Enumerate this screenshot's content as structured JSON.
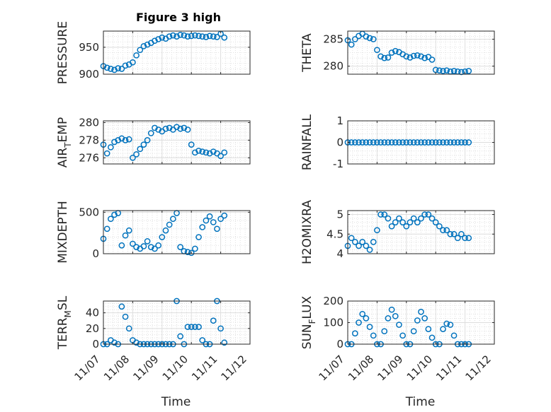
{
  "figure": {
    "title": "Figure 3 high"
  },
  "chart_data": [
    {
      "type": "scatter",
      "id": "pressure",
      "title": "Figure 3 high",
      "xlabel": "",
      "ylabel": "PRESSURE",
      "xlim": [
        "11/07",
        "11/12"
      ],
      "xticks": [
        "11/07",
        "11/08",
        "11/09",
        "11/10",
        "11/11",
        "11/12"
      ],
      "show_xtick_labels": false,
      "ylim": [
        900,
        980
      ],
      "yticks": [
        900,
        950
      ],
      "grid": true,
      "color": "#0072BD",
      "x": [
        "11/07 00:00",
        "11/07 03:00",
        "11/07 06:00",
        "11/07 09:00",
        "11/07 12:00",
        "11/07 15:00",
        "11/07 18:00",
        "11/07 21:00",
        "11/08 00:00",
        "11/08 03:00",
        "11/08 06:00",
        "11/08 09:00",
        "11/08 12:00",
        "11/08 15:00",
        "11/08 18:00",
        "11/08 21:00",
        "11/09 00:00",
        "11/09 03:00",
        "11/09 06:00",
        "11/09 09:00",
        "11/09 12:00",
        "11/09 15:00",
        "11/09 18:00",
        "11/09 21:00",
        "11/10 00:00",
        "11/10 03:00",
        "11/10 06:00",
        "11/10 09:00",
        "11/10 12:00",
        "11/10 15:00",
        "11/10 18:00",
        "11/10 21:00",
        "11/11 00:00",
        "11/11 03:00"
      ],
      "y": [
        915,
        912,
        910,
        908,
        911,
        910,
        916,
        918,
        922,
        935,
        945,
        952,
        955,
        958,
        962,
        965,
        968,
        966,
        970,
        972,
        970,
        973,
        972,
        970,
        971,
        972,
        971,
        970,
        969,
        971,
        970,
        969,
        975,
        968
      ]
    },
    {
      "type": "scatter",
      "id": "theta",
      "xlabel": "",
      "ylabel": "THETA",
      "xlim": [
        "11/07",
        "11/12"
      ],
      "xticks": [
        "11/07",
        "11/08",
        "11/09",
        "11/10",
        "11/11",
        "11/12"
      ],
      "show_xtick_labels": false,
      "ylim": [
        278.5,
        286.5
      ],
      "yticks": [
        280,
        285
      ],
      "grid": true,
      "color": "#0072BD",
      "x": [
        "11/07 00:00",
        "11/07 03:00",
        "11/07 06:00",
        "11/07 09:00",
        "11/07 12:00",
        "11/07 15:00",
        "11/07 18:00",
        "11/07 21:00",
        "11/08 00:00",
        "11/08 03:00",
        "11/08 06:00",
        "11/08 09:00",
        "11/08 12:00",
        "11/08 15:00",
        "11/08 18:00",
        "11/08 21:00",
        "11/09 00:00",
        "11/09 03:00",
        "11/09 06:00",
        "11/09 09:00",
        "11/09 12:00",
        "11/09 15:00",
        "11/09 18:00",
        "11/09 21:00",
        "11/10 00:00",
        "11/10 03:00",
        "11/10 06:00",
        "11/10 09:00",
        "11/10 12:00",
        "11/10 15:00",
        "11/10 18:00",
        "11/10 21:00",
        "11/11 00:00",
        "11/11 03:00"
      ],
      "y": [
        284.8,
        284.0,
        285.0,
        285.6,
        286.0,
        285.5,
        285.2,
        285.0,
        283.0,
        281.8,
        281.5,
        281.6,
        282.5,
        282.8,
        282.6,
        282.2,
        281.8,
        281.6,
        281.9,
        282.0,
        281.8,
        281.5,
        281.7,
        281.2,
        279.3,
        279.2,
        279.1,
        279.2,
        279.0,
        279.1,
        279.0,
        278.9,
        279.0,
        279.1
      ]
    },
    {
      "type": "scatter",
      "id": "air_temp",
      "xlabel": "",
      "ylabel": "AIR_TEMP",
      "ylabel_main": "AIR",
      "ylabel_sub": "T",
      "ylabel_rest": "EMP",
      "xlim": [
        "11/07",
        "11/12"
      ],
      "xticks": [
        "11/07",
        "11/08",
        "11/09",
        "11/10",
        "11/11",
        "11/12"
      ],
      "show_xtick_labels": false,
      "ylim": [
        275.3,
        280.2
      ],
      "yticks": [
        276,
        278,
        280
      ],
      "grid": true,
      "color": "#0072BD",
      "x": [
        "11/07 00:00",
        "11/07 03:00",
        "11/07 06:00",
        "11/07 09:00",
        "11/07 12:00",
        "11/07 15:00",
        "11/07 18:00",
        "11/07 21:00",
        "11/08 00:00",
        "11/08 03:00",
        "11/08 06:00",
        "11/08 09:00",
        "11/08 12:00",
        "11/08 15:00",
        "11/08 18:00",
        "11/08 21:00",
        "11/09 00:00",
        "11/09 03:00",
        "11/09 06:00",
        "11/09 09:00",
        "11/09 12:00",
        "11/09 15:00",
        "11/09 18:00",
        "11/09 21:00",
        "11/10 00:00",
        "11/10 03:00",
        "11/10 06:00",
        "11/10 09:00",
        "11/10 12:00",
        "11/10 15:00",
        "11/10 18:00",
        "11/10 21:00",
        "11/11 00:00",
        "11/11 03:00"
      ],
      "y": [
        277.5,
        276.5,
        277.2,
        277.8,
        278.0,
        278.2,
        278.0,
        278.1,
        276.0,
        276.4,
        277.0,
        277.5,
        278.0,
        278.8,
        279.4,
        279.2,
        279.0,
        279.3,
        279.4,
        279.2,
        279.5,
        279.3,
        279.4,
        279.2,
        277.5,
        276.6,
        276.8,
        276.7,
        276.6,
        276.5,
        276.7,
        276.5,
        276.2,
        276.6
      ]
    },
    {
      "type": "scatter",
      "id": "rainfall",
      "xlabel": "",
      "ylabel": "RAINFALL",
      "xlim": [
        "11/07",
        "11/12"
      ],
      "xticks": [
        "11/07",
        "11/08",
        "11/09",
        "11/10",
        "11/11",
        "11/12"
      ],
      "show_xtick_labels": false,
      "ylim": [
        -1,
        1
      ],
      "yticks": [
        -1,
        0,
        1
      ],
      "grid": true,
      "color": "#0072BD",
      "x": [
        "11/07 00:00",
        "11/07 03:00",
        "11/07 06:00",
        "11/07 09:00",
        "11/07 12:00",
        "11/07 15:00",
        "11/07 18:00",
        "11/07 21:00",
        "11/08 00:00",
        "11/08 03:00",
        "11/08 06:00",
        "11/08 09:00",
        "11/08 12:00",
        "11/08 15:00",
        "11/08 18:00",
        "11/08 21:00",
        "11/09 00:00",
        "11/09 03:00",
        "11/09 06:00",
        "11/09 09:00",
        "11/09 12:00",
        "11/09 15:00",
        "11/09 18:00",
        "11/09 21:00",
        "11/10 00:00",
        "11/10 03:00",
        "11/10 06:00",
        "11/10 09:00",
        "11/10 12:00",
        "11/10 15:00",
        "11/10 18:00",
        "11/10 21:00",
        "11/11 00:00",
        "11/11 03:00"
      ],
      "y": [
        0,
        0,
        0,
        0,
        0,
        0,
        0,
        0,
        0,
        0,
        0,
        0,
        0,
        0,
        0,
        0,
        0,
        0,
        0,
        0,
        0,
        0,
        0,
        0,
        0,
        0,
        0,
        0,
        0,
        0,
        0,
        0,
        0,
        0
      ]
    },
    {
      "type": "scatter",
      "id": "mixdepth",
      "xlabel": "",
      "ylabel": "MIXDEPTH",
      "xlim": [
        "11/07",
        "11/12"
      ],
      "xticks": [
        "11/07",
        "11/08",
        "11/09",
        "11/10",
        "11/11",
        "11/12"
      ],
      "show_xtick_labels": false,
      "ylim": [
        0,
        520
      ],
      "yticks": [
        0,
        500
      ],
      "grid": true,
      "color": "#0072BD",
      "x": [
        "11/07 00:00",
        "11/07 03:00",
        "11/07 06:00",
        "11/07 09:00",
        "11/07 12:00",
        "11/07 15:00",
        "11/07 18:00",
        "11/07 21:00",
        "11/08 00:00",
        "11/08 03:00",
        "11/08 06:00",
        "11/08 09:00",
        "11/08 12:00",
        "11/08 15:00",
        "11/08 18:00",
        "11/08 21:00",
        "11/09 00:00",
        "11/09 03:00",
        "11/09 06:00",
        "11/09 09:00",
        "11/09 12:00",
        "11/09 15:00",
        "11/09 18:00",
        "11/09 21:00",
        "11/10 00:00",
        "11/10 03:00",
        "11/10 06:00",
        "11/10 09:00",
        "11/10 12:00",
        "11/10 15:00",
        "11/10 18:00",
        "11/10 21:00",
        "11/11 00:00",
        "11/11 03:00"
      ],
      "y": [
        180,
        300,
        420,
        470,
        490,
        100,
        220,
        280,
        120,
        80,
        60,
        90,
        150,
        80,
        60,
        100,
        200,
        280,
        350,
        420,
        490,
        80,
        30,
        20,
        10,
        60,
        200,
        320,
        400,
        450,
        380,
        300,
        420,
        460
      ]
    },
    {
      "type": "scatter",
      "id": "h2omixra",
      "xlabel": "",
      "ylabel": "H2OMIXRA",
      "xlim": [
        "11/07",
        "11/12"
      ],
      "xticks": [
        "11/07",
        "11/08",
        "11/09",
        "11/10",
        "11/11",
        "11/12"
      ],
      "show_xtick_labels": false,
      "ylim": [
        4,
        5.1
      ],
      "yticks": [
        4,
        4.5,
        5
      ],
      "grid": true,
      "color": "#0072BD",
      "x": [
        "11/07 00:00",
        "11/07 03:00",
        "11/07 06:00",
        "11/07 09:00",
        "11/07 12:00",
        "11/07 15:00",
        "11/07 18:00",
        "11/07 21:00",
        "11/08 00:00",
        "11/08 03:00",
        "11/08 06:00",
        "11/08 09:00",
        "11/08 12:00",
        "11/08 15:00",
        "11/08 18:00",
        "11/08 21:00",
        "11/09 00:00",
        "11/09 03:00",
        "11/09 06:00",
        "11/09 09:00",
        "11/09 12:00",
        "11/09 15:00",
        "11/09 18:00",
        "11/09 21:00",
        "11/10 00:00",
        "11/10 03:00",
        "11/10 06:00",
        "11/10 09:00",
        "11/10 12:00",
        "11/10 15:00",
        "11/10 18:00",
        "11/10 21:00",
        "11/11 00:00",
        "11/11 03:00"
      ],
      "y": [
        4.2,
        4.4,
        4.3,
        4.2,
        4.3,
        4.2,
        4.1,
        4.3,
        4.6,
        5.0,
        5.0,
        4.9,
        4.7,
        4.8,
        4.9,
        4.8,
        4.7,
        4.8,
        4.9,
        4.8,
        4.9,
        5.0,
        5.0,
        4.9,
        4.8,
        4.7,
        4.6,
        4.6,
        4.5,
        4.5,
        4.4,
        4.5,
        4.4,
        4.4
      ]
    },
    {
      "type": "scatter",
      "id": "terr_msl",
      "xlabel": "Time",
      "ylabel": "TERR_MSL",
      "ylabel_main": "TERR",
      "ylabel_sub": "M",
      "ylabel_rest": "SL",
      "xlim": [
        "11/07",
        "11/12"
      ],
      "xticks": [
        "11/07",
        "11/08",
        "11/09",
        "11/10",
        "11/11",
        "11/12"
      ],
      "show_xtick_labels": true,
      "ylim": [
        0,
        55
      ],
      "yticks": [
        0,
        20,
        40
      ],
      "grid": true,
      "color": "#0072BD",
      "x": [
        "11/07 00:00",
        "11/07 03:00",
        "11/07 06:00",
        "11/07 09:00",
        "11/07 12:00",
        "11/07 15:00",
        "11/07 18:00",
        "11/07 21:00",
        "11/08 00:00",
        "11/08 03:00",
        "11/08 06:00",
        "11/08 09:00",
        "11/08 12:00",
        "11/08 15:00",
        "11/08 18:00",
        "11/08 21:00",
        "11/09 00:00",
        "11/09 03:00",
        "11/09 06:00",
        "11/09 09:00",
        "11/09 12:00",
        "11/09 15:00",
        "11/09 18:00",
        "11/09 21:00",
        "11/10 00:00",
        "11/10 03:00",
        "11/10 06:00",
        "11/10 09:00",
        "11/10 12:00",
        "11/10 15:00",
        "11/10 18:00",
        "11/10 21:00",
        "11/11 00:00",
        "11/11 03:00"
      ],
      "y": [
        0,
        0,
        5,
        2,
        0,
        48,
        35,
        20,
        5,
        2,
        0,
        0,
        0,
        0,
        0,
        0,
        0,
        0,
        0,
        0,
        55,
        10,
        0,
        22,
        22,
        22,
        22,
        5,
        0,
        0,
        30,
        55,
        20,
        2
      ]
    },
    {
      "type": "scatter",
      "id": "sun_flux",
      "xlabel": "Time",
      "ylabel": "SUN_FLUX",
      "ylabel_main": "SUN",
      "ylabel_sub": "F",
      "ylabel_rest": "LUX",
      "xlim": [
        "11/07",
        "11/12"
      ],
      "xticks": [
        "11/07",
        "11/08",
        "11/09",
        "11/10",
        "11/11",
        "11/12"
      ],
      "show_xtick_labels": true,
      "ylim": [
        0,
        200
      ],
      "yticks": [
        0,
        100,
        200
      ],
      "grid": true,
      "color": "#0072BD",
      "x": [
        "11/07 00:00",
        "11/07 03:00",
        "11/07 06:00",
        "11/07 09:00",
        "11/07 12:00",
        "11/07 15:00",
        "11/07 18:00",
        "11/07 21:00",
        "11/08 00:00",
        "11/08 03:00",
        "11/08 06:00",
        "11/08 09:00",
        "11/08 12:00",
        "11/08 15:00",
        "11/08 18:00",
        "11/08 21:00",
        "11/09 00:00",
        "11/09 03:00",
        "11/09 06:00",
        "11/09 09:00",
        "11/09 12:00",
        "11/09 15:00",
        "11/09 18:00",
        "11/09 21:00",
        "11/10 00:00",
        "11/10 03:00",
        "11/10 06:00",
        "11/10 09:00",
        "11/10 12:00",
        "11/10 15:00",
        "11/10 18:00",
        "11/10 21:00",
        "11/11 00:00",
        "11/11 03:00"
      ],
      "y": [
        0,
        0,
        50,
        100,
        140,
        120,
        80,
        40,
        0,
        0,
        60,
        120,
        160,
        130,
        90,
        40,
        0,
        0,
        60,
        110,
        150,
        120,
        70,
        30,
        0,
        0,
        70,
        95,
        90,
        40,
        0,
        0,
        0,
        0
      ]
    }
  ]
}
